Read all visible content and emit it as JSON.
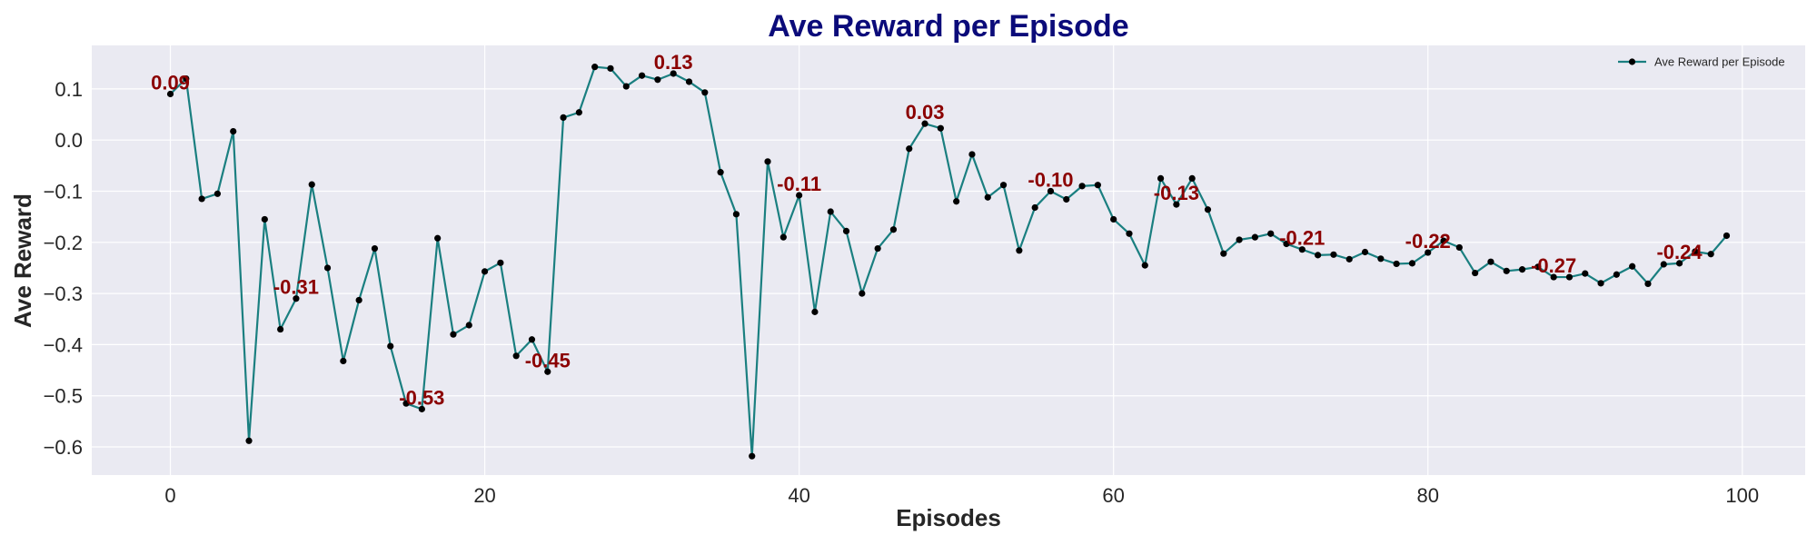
{
  "chart_data": {
    "type": "line",
    "title": "Ave Reward per Episode",
    "xlabel": "Episodes",
    "ylabel": "Ave Reward",
    "xlim": [
      -5,
      104
    ],
    "ylim": [
      -0.655,
      0.185
    ],
    "xticks": [
      0,
      20,
      40,
      60,
      80,
      100
    ],
    "yticks": [
      -0.6,
      -0.5,
      -0.4,
      -0.3,
      -0.2,
      -0.1,
      0.0,
      0.1
    ],
    "ytick_labels": [
      "−0.6",
      "−0.5",
      "−0.4",
      "−0.3",
      "−0.2",
      "−0.1",
      "0.0",
      "0.1"
    ],
    "grid": true,
    "legend_position": "top-right",
    "series": [
      {
        "name": "Ave Reward per Episode",
        "x": [
          0,
          1,
          2,
          3,
          4,
          5,
          6,
          7,
          8,
          9,
          10,
          11,
          12,
          13,
          14,
          15,
          16,
          17,
          18,
          19,
          20,
          21,
          22,
          23,
          24,
          25,
          26,
          27,
          28,
          29,
          30,
          31,
          32,
          33,
          34,
          35,
          36,
          37,
          38,
          39,
          40,
          41,
          42,
          43,
          44,
          45,
          46,
          47,
          48,
          49,
          50,
          51,
          52,
          53,
          54,
          55,
          56,
          57,
          58,
          59,
          60,
          61,
          62,
          63,
          64,
          65,
          66,
          67,
          68,
          69,
          70,
          71,
          72,
          73,
          74,
          75,
          76,
          77,
          78,
          79,
          80,
          81,
          82,
          83,
          84,
          85,
          86,
          87,
          88,
          89,
          90,
          91,
          92,
          93,
          94,
          95,
          96,
          97,
          98,
          99
        ],
        "y": [
          0.09,
          0.12,
          -0.115,
          -0.105,
          0.017,
          -0.588,
          -0.155,
          -0.37,
          -0.31,
          -0.087,
          -0.25,
          -0.432,
          -0.313,
          -0.212,
          -0.403,
          -0.515,
          -0.526,
          -0.192,
          -0.38,
          -0.362,
          -0.257,
          -0.24,
          -0.422,
          -0.39,
          -0.453,
          0.044,
          0.054,
          0.143,
          0.14,
          0.105,
          0.126,
          0.118,
          0.13,
          0.114,
          0.093,
          -0.063,
          -0.145,
          -0.618,
          -0.042,
          -0.19,
          -0.108,
          -0.336,
          -0.14,
          -0.178,
          -0.3,
          -0.212,
          -0.175,
          -0.017,
          0.032,
          0.023,
          -0.12,
          -0.028,
          -0.112,
          -0.088,
          -0.216,
          -0.132,
          -0.1,
          -0.116,
          -0.09,
          -0.088,
          -0.155,
          -0.183,
          -0.245,
          -0.075,
          -0.126,
          -0.075,
          -0.136,
          -0.222,
          -0.195,
          -0.19,
          -0.183,
          -0.203,
          -0.214,
          -0.225,
          -0.224,
          -0.233,
          -0.219,
          -0.232,
          -0.242,
          -0.241,
          -0.22,
          -0.197,
          -0.21,
          -0.26,
          -0.238,
          -0.256,
          -0.253,
          -0.248,
          -0.268,
          -0.268,
          -0.261,
          -0.28,
          -0.263,
          -0.247,
          -0.281,
          -0.243,
          -0.241,
          -0.218,
          -0.223,
          -0.187
        ],
        "color": "#1a7f80",
        "marker_color": "#000000"
      }
    ],
    "annotations": [
      {
        "x": 0,
        "y": 0.09,
        "text": "0.09"
      },
      {
        "x": 8,
        "y": -0.31,
        "text": "-0.31"
      },
      {
        "x": 16,
        "y": -0.526,
        "text": "-0.53"
      },
      {
        "x": 24,
        "y": -0.453,
        "text": "-0.45"
      },
      {
        "x": 32,
        "y": 0.13,
        "text": "0.13"
      },
      {
        "x": 40,
        "y": -0.108,
        "text": "-0.11"
      },
      {
        "x": 48,
        "y": 0.032,
        "text": "0.03"
      },
      {
        "x": 56,
        "y": -0.1,
        "text": "-0.10"
      },
      {
        "x": 64,
        "y": -0.126,
        "text": "-0.13"
      },
      {
        "x": 72,
        "y": -0.214,
        "text": "-0.21"
      },
      {
        "x": 80,
        "y": -0.22,
        "text": "-0.22"
      },
      {
        "x": 88,
        "y": -0.268,
        "text": "-0.27"
      },
      {
        "x": 96,
        "y": -0.241,
        "text": "-0.24"
      }
    ],
    "colors": {
      "title": "#0b0b7a",
      "annotation": "#8b0000",
      "plot_background": "#eaeaf2",
      "grid": "#ffffff",
      "line": "#1a7f80",
      "marker": "#000000"
    }
  }
}
